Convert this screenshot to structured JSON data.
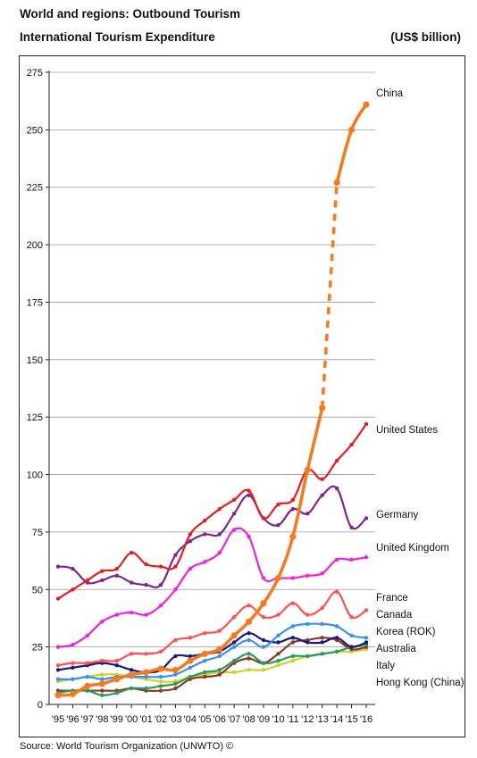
{
  "header": {
    "title": "World and regions: Outbound Tourism",
    "subtitle": "International Tourism Expenditure",
    "unit": "(US$ billion)"
  },
  "footer": {
    "source": "Source: World Tourism Organization (UNWTO) ©"
  },
  "chart_data": {
    "type": "line",
    "title": "International Tourism Expenditure",
    "ylabel": "(US$ billion)",
    "ylim": [
      0,
      275
    ],
    "yticks": [
      0,
      25,
      50,
      75,
      100,
      125,
      150,
      175,
      200,
      225,
      250,
      275
    ],
    "grid": true,
    "legend": "labels at right end of lines",
    "x": [
      "'95",
      "'96",
      "'97",
      "'98",
      "'99",
      "'00",
      "'01",
      "'02",
      "'03",
      "'04",
      "'05",
      "'06",
      "'07",
      "'08",
      "'09",
      "'10",
      "'11",
      "'12",
      "'13",
      "'14",
      "'15",
      "'16"
    ],
    "series": [
      {
        "name": "China",
        "color": "#f47b20",
        "values": [
          4,
          4.5,
          8,
          9,
          11,
          13,
          14,
          15.5,
          15,
          19,
          22,
          24,
          30,
          36,
          44,
          55,
          73,
          102,
          129,
          227,
          250,
          261
        ],
        "dashed_segment": [
          18,
          19
        ]
      },
      {
        "name": "United States",
        "color": "#e02020",
        "values": [
          46,
          50,
          54,
          58,
          59,
          66,
          61,
          60,
          60,
          74,
          80,
          85,
          89,
          93,
          81,
          87,
          89,
          102,
          98,
          106,
          113,
          122
        ]
      },
      {
        "name": "Germany",
        "color": "#7b2a8c",
        "values": [
          60,
          59,
          53,
          54,
          56,
          53,
          52,
          52,
          65,
          71,
          74,
          74,
          83,
          91,
          81,
          78,
          85,
          83,
          91,
          94,
          77,
          81
        ]
      },
      {
        "name": "United Kingdom",
        "color": "#ee22dd",
        "values": [
          25,
          26,
          30,
          36,
          39,
          40,
          39,
          43,
          50,
          59,
          62,
          66,
          76,
          73,
          55,
          55,
          55,
          56,
          57,
          63,
          63,
          64
        ]
      },
      {
        "name": "France",
        "color": "#ff5050",
        "values": [
          17,
          18,
          18,
          19,
          19,
          22,
          22,
          23,
          28,
          29,
          31,
          32,
          38,
          43,
          38,
          39,
          44,
          39,
          42,
          49,
          38,
          41
        ]
      },
      {
        "name": "Canada",
        "color": "#3b8ff0",
        "values": [
          11,
          11,
          12,
          11,
          12,
          12,
          12,
          12,
          13,
          16,
          19,
          21,
          25,
          28,
          25,
          30,
          34,
          35,
          35,
          34,
          30,
          29
        ]
      },
      {
        "name": "Korea (ROK)",
        "color": "#1a1a80",
        "values": [
          15,
          16,
          17,
          18,
          17,
          15,
          14,
          15,
          21,
          21,
          22,
          23,
          27,
          31,
          28,
          27,
          29,
          27,
          27,
          29,
          25,
          27
        ]
      },
      {
        "name": "Australia",
        "color": "#2a9a5a",
        "values": [
          5,
          6,
          6,
          4,
          5,
          7,
          7,
          8,
          9,
          12,
          14,
          15,
          19,
          22,
          18,
          19,
          21,
          21,
          22,
          23,
          25,
          26
        ]
      },
      {
        "name": "Italy",
        "color": "#8b3a2a",
        "values": [
          6,
          6,
          6,
          6,
          6,
          7,
          6,
          6,
          7,
          11,
          12,
          13,
          18,
          20,
          18,
          22,
          27,
          28,
          29,
          28,
          24,
          25
        ]
      },
      {
        "name": "Hong Kong (China)",
        "color": "#c7d62a",
        "values": [
          10,
          11,
          12,
          13,
          13,
          12,
          11,
          10,
          10,
          12,
          13,
          14,
          14,
          15,
          15,
          17,
          19,
          21,
          22,
          23,
          23,
          24
        ]
      }
    ]
  }
}
